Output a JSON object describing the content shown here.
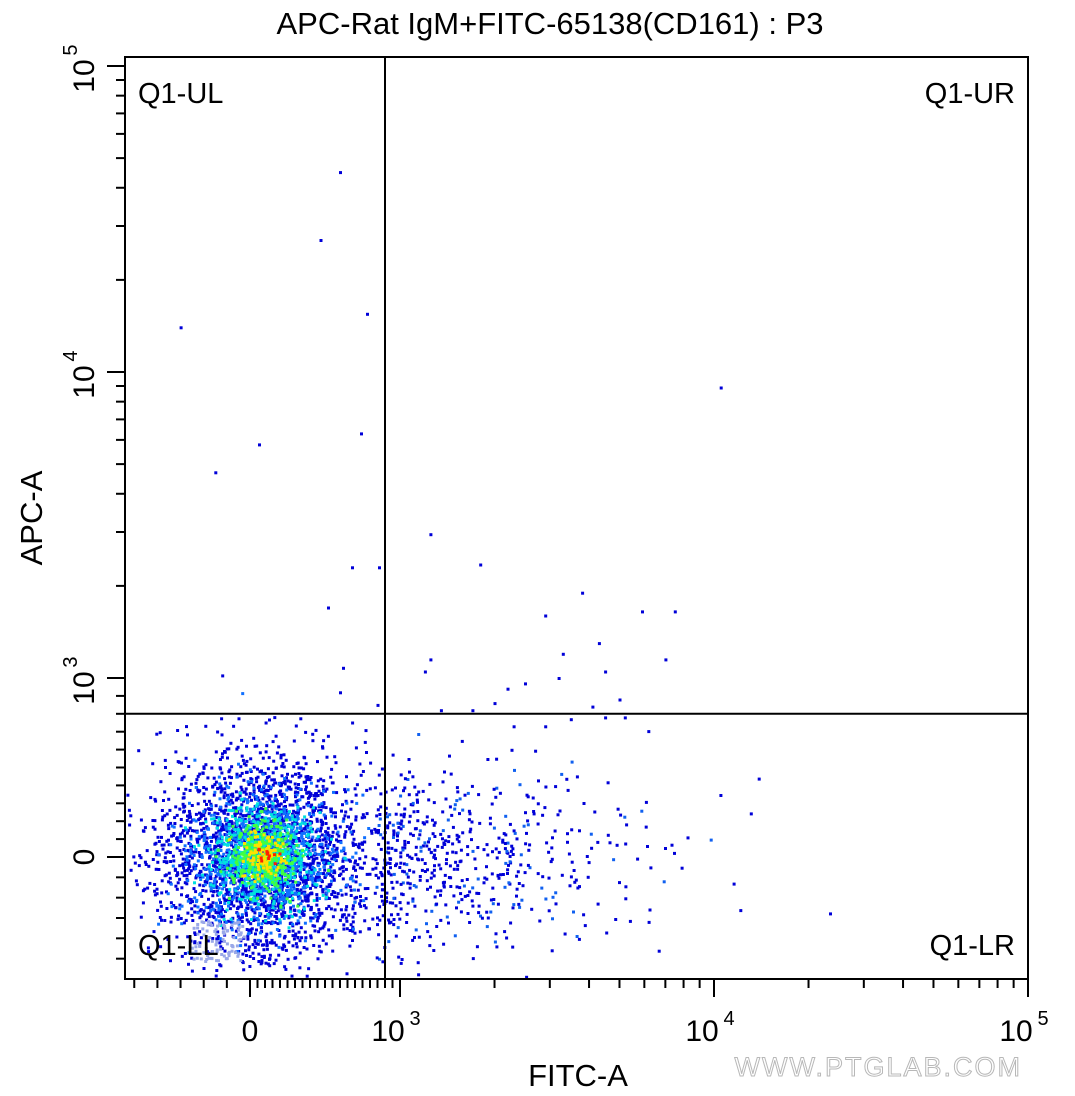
{
  "chart_data": {
    "type": "scatter",
    "title": "APC-Rat IgM+FITC-65138(CD161) : P3",
    "xlabel": "FITC-A",
    "ylabel": "APC-A",
    "x_scale": "biexponential",
    "y_scale": "biexponential",
    "xlim": [
      -270,
      100000
    ],
    "ylim": [
      -300,
      100000
    ],
    "x_tick_labels": [
      {
        "value": 0,
        "base": "0",
        "exp": ""
      },
      {
        "value": 1000,
        "base": "10",
        "exp": "3"
      },
      {
        "value": 10000,
        "base": "10",
        "exp": "4"
      },
      {
        "value": 100000,
        "base": "10",
        "exp": "5"
      }
    ],
    "y_tick_labels": [
      {
        "value": 0,
        "base": "0",
        "exp": ""
      },
      {
        "value": 1000,
        "base": "10",
        "exp": "3"
      },
      {
        "value": 10000,
        "base": "10",
        "exp": "4"
      },
      {
        "value": 100000,
        "base": "10",
        "exp": "5"
      }
    ],
    "quadrant_gate": {
      "x": 900,
      "y": 800
    },
    "quadrant_labels": {
      "upper_left": "Q1-UL",
      "upper_right": "Q1-UR",
      "lower_left": "Q1-LL",
      "lower_right": "Q1-LR"
    },
    "population": {
      "x_center": 80,
      "y_center": 10,
      "density_colors": [
        "#0000d8",
        "#1070ff",
        "#00e0e0",
        "#40ff40",
        "#ffe000",
        "#ff2000"
      ]
    },
    "sparse_events": [
      [
        600,
        45000
      ],
      [
        470,
        27000
      ],
      [
        -150,
        14000
      ],
      [
        780,
        15500
      ],
      [
        60,
        5800
      ],
      [
        740,
        6300
      ],
      [
        -75,
        4700
      ],
      [
        10500,
        8900
      ],
      [
        1250,
        2950
      ],
      [
        1800,
        2350
      ],
      [
        680,
        2300
      ],
      [
        860,
        2300
      ],
      [
        520,
        1700
      ],
      [
        2900,
        1600
      ],
      [
        3800,
        1900
      ],
      [
        5900,
        1650
      ],
      [
        7500,
        1650
      ],
      [
        3300,
        1200
      ],
      [
        1250,
        1150
      ],
      [
        4300,
        1300
      ],
      [
        7000,
        1150
      ],
      [
        -60,
        1020
      ],
      [
        620,
        1080
      ],
      [
        4500,
        1050
      ],
      [
        1200,
        1050
      ],
      [
        2500,
        970
      ],
      [
        2200,
        940
      ],
      [
        3200,
        1000
      ],
      [
        4100,
        840
      ],
      [
        5000,
        880
      ],
      [
        2000,
        860
      ],
      [
        600,
        920
      ],
      [
        850,
        850
      ],
      [
        1350,
        820
      ],
      [
        1700,
        820
      ],
      [
        4500,
        780
      ],
      [
        5200,
        780
      ],
      [
        3500,
        770
      ],
      [
        2300,
        730
      ],
      [
        2900,
        730
      ]
    ],
    "grid": false,
    "legend": "none"
  },
  "watermark": "WWW.PTGLAB.COM"
}
